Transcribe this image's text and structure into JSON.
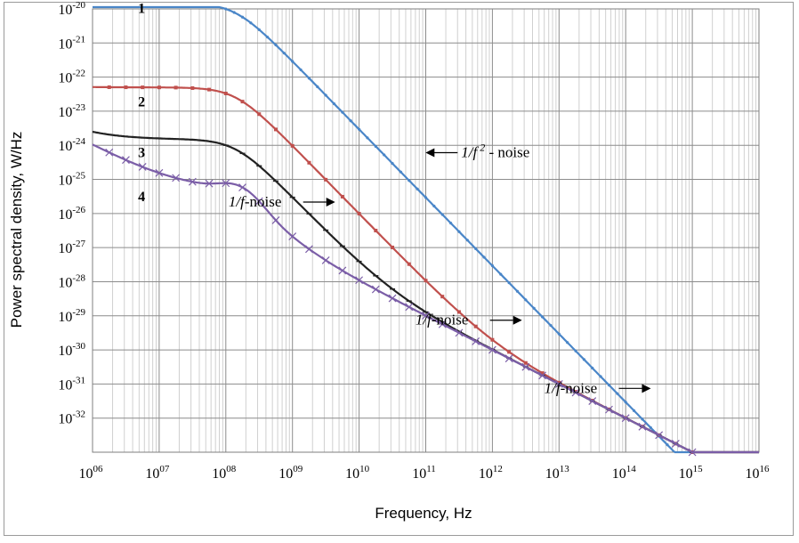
{
  "chart_data": {
    "type": "line",
    "title": "",
    "xlabel": "Frequency, Hz",
    "ylabel": "Power spectral density, W/Hz",
    "x_scale": "log",
    "y_scale": "log",
    "xlim": [
      1000000.0,
      1e+16
    ],
    "ylim": [
      1e-33,
      1e-20
    ],
    "grid": true,
    "x_ticks": [
      {
        "base": "10",
        "exp": "06"
      },
      {
        "base": "10",
        "exp": "07"
      },
      {
        "base": "10",
        "exp": "08"
      },
      {
        "base": "10",
        "exp": "09"
      },
      {
        "base": "10",
        "exp": "10"
      },
      {
        "base": "10",
        "exp": "11"
      },
      {
        "base": "10",
        "exp": "12"
      },
      {
        "base": "10",
        "exp": "13"
      },
      {
        "base": "10",
        "exp": "14"
      },
      {
        "base": "10",
        "exp": "15"
      },
      {
        "base": "10",
        "exp": "16"
      }
    ],
    "y_ticks": [
      {
        "value": 1e-20,
        "base": "10",
        "exp": "-20"
      },
      {
        "value": 1e-21,
        "base": "10",
        "exp": "-21"
      },
      {
        "value": 1e-22,
        "base": "10",
        "exp": "-22"
      },
      {
        "value": 1e-23,
        "base": "10",
        "exp": "-23"
      },
      {
        "value": 1e-24,
        "base": "10",
        "exp": "-24"
      },
      {
        "value": 1e-25,
        "base": "10",
        "exp": "-25"
      },
      {
        "value": 1e-26,
        "base": "10",
        "exp": "-26"
      },
      {
        "value": 1e-27,
        "base": "10",
        "exp": "-27"
      },
      {
        "value": 1e-28,
        "base": "10",
        "exp": "-28"
      },
      {
        "value": 1e-29,
        "base": "10",
        "exp": "-29"
      },
      {
        "value": 1e-30,
        "base": "10",
        "exp": "-30"
      },
      {
        "value": 1e-31,
        "base": "10",
        "exp": "-31"
      },
      {
        "value": 1e-32,
        "base": "10",
        "exp": "-32"
      }
    ],
    "series": [
      {
        "name": "1",
        "color": "#4a86c8",
        "marker": "dot",
        "marker_step": 0.125,
        "model": {
          "plateau": 1.5e-20,
          "corner": 140000000.0,
          "flicker": 0
        }
      },
      {
        "name": "2",
        "color": "#c0504d",
        "marker": "square",
        "marker_step": 0.25,
        "model": {
          "plateau": 5e-23,
          "corner": 140000000.0,
          "flicker": 1e-18
        }
      },
      {
        "name": "3",
        "color": "#222222",
        "marker": "tick",
        "marker_step": 0.25,
        "model": {
          "plateau": 1.5e-24,
          "corner": 140000000.0,
          "flicker": 1e-18
        }
      },
      {
        "name": "4",
        "color": "#7b5ea7",
        "marker": "cross",
        "marker_step": 0.25,
        "model": {
          "plateau": 5.5e-26,
          "corner": 140000000.0,
          "flicker": 1e-18,
          "bump": 6e-26,
          "bump_center": 200000000.0
        }
      }
    ],
    "curve_labels": [
      {
        "text": "1",
        "x": 1800000.0,
        "y": 1.1e-20
      },
      {
        "text": "2",
        "x": 1800000.0,
        "y": 2e-23
      },
      {
        "text": "3",
        "x": 1800000.0,
        "y": 6.5e-25
      },
      {
        "text": "4",
        "x": 1800000.0,
        "y": 3.3e-26
      }
    ],
    "annotations": [
      {
        "id": "f2",
        "prefix": "1/",
        "var": "f",
        "sup": "2",
        "suffix": "- noise",
        "x": 340000000000.0,
        "y": 4.5e-25,
        "arrow": "left"
      },
      {
        "id": "f1a",
        "prefix": "1/",
        "var": "f",
        "sup": "",
        "suffix": "-noise",
        "x": 110000000.0,
        "y": 1.6e-26,
        "arrow": "right"
      },
      {
        "id": "f1b",
        "prefix": "1/",
        "var": "f",
        "sup": "",
        "suffix": "-noise",
        "x": 70000000000.0,
        "y": 5.5e-30,
        "arrow": "right"
      },
      {
        "id": "f1c",
        "prefix": "1/",
        "var": "f",
        "sup": "",
        "suffix": "-noise",
        "x": 6000000000000.0,
        "y": 5.5e-32,
        "arrow": "right"
      }
    ]
  }
}
